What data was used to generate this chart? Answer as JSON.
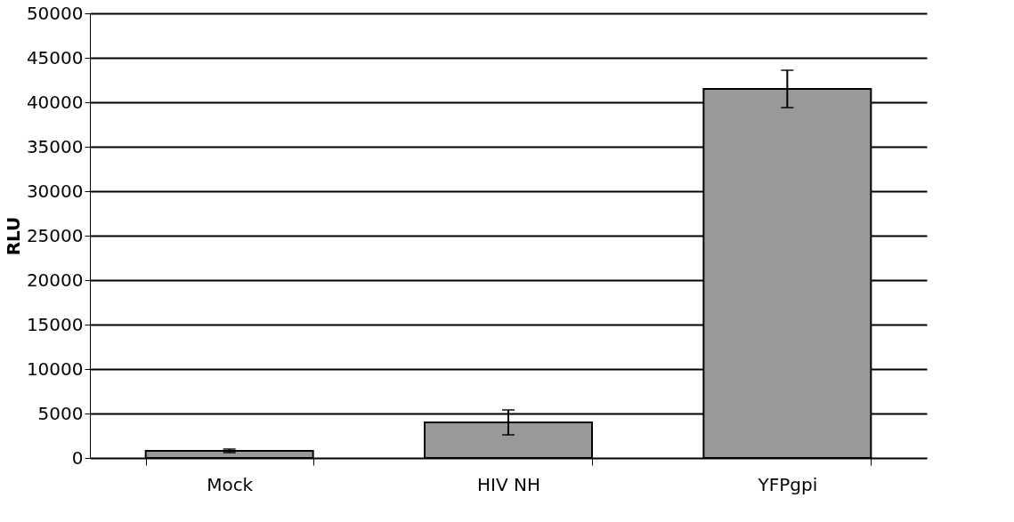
{
  "chart_data": {
    "type": "bar",
    "ylabel": "RLU",
    "categories": [
      "Mock",
      "HIV NH",
      "YFPgpi"
    ],
    "values": [
      800,
      4000,
      41500
    ],
    "errors": [
      200,
      1400,
      2100
    ],
    "color": "#999999",
    "ylim": [
      0,
      50000
    ],
    "yticks": [
      0,
      5000,
      10000,
      15000,
      20000,
      25000,
      30000,
      35000,
      40000,
      45000,
      50000
    ],
    "grid": "y"
  }
}
